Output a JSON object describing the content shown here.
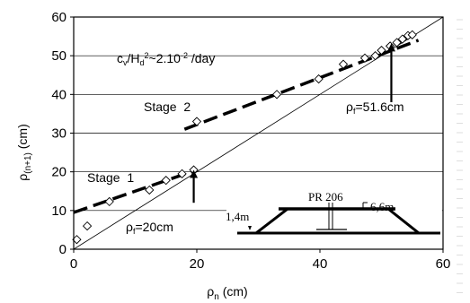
{
  "chart_data": {
    "type": "scatter",
    "xlabel": "ρn (cm)",
    "ylabel": "ρ(n+1) (cm)",
    "xlim": [
      0,
      60
    ],
    "ylim": [
      0,
      60
    ],
    "x_ticks": [
      "0",
      "20",
      "40",
      "60"
    ],
    "y_ticks": [
      "0",
      "10",
      "20",
      "30",
      "40",
      "50",
      "60"
    ],
    "grid": "horizontal",
    "legend": "none",
    "points": [
      {
        "x": 0.5,
        "y": 2.5
      },
      {
        "x": 2.2,
        "y": 6
      },
      {
        "x": 5.8,
        "y": 12.3
      },
      {
        "x": 12.3,
        "y": 15.3
      },
      {
        "x": 15,
        "y": 17.8
      },
      {
        "x": 17.6,
        "y": 19.5
      },
      {
        "x": 19.5,
        "y": 20.5
      },
      {
        "x": 20,
        "y": 33
      },
      {
        "x": 33,
        "y": 40
      },
      {
        "x": 39.8,
        "y": 44
      },
      {
        "x": 43.8,
        "y": 47.8
      },
      {
        "x": 47.3,
        "y": 49.4
      },
      {
        "x": 49,
        "y": 50
      },
      {
        "x": 50,
        "y": 51.4
      },
      {
        "x": 51.4,
        "y": 52.5
      },
      {
        "x": 52.5,
        "y": 53.4
      },
      {
        "x": 53.4,
        "y": 54.3
      },
      {
        "x": 54.3,
        "y": 55.2
      },
      {
        "x": 55,
        "y": 55.4
      }
    ],
    "fit_lines": [
      {
        "name": "Stage 1",
        "x": [
          0,
          20
        ],
        "y": [
          9.5,
          20.5
        ],
        "style": "dashed"
      },
      {
        "name": "Stage 2",
        "x": [
          18,
          56
        ],
        "y": [
          31,
          54
        ],
        "style": "dashed"
      }
    ],
    "reference_line": {
      "x": [
        0,
        60
      ],
      "y": [
        0,
        60
      ],
      "style": "thin"
    },
    "annotations": {
      "stage1": "Stage  1",
      "stage2": "Stage  2",
      "cv_label": "cv/Hd2~2.10-2 /day",
      "cv_c": "c",
      "cv_v": "v",
      "cv_slash_h": "/H",
      "cv_d": "d",
      "cv_2": "2",
      "cv_approx": "~2.10",
      "cv_exp": "-2",
      "cv_unit": " /day",
      "rho_f1": "ρf=20cm",
      "rho_f1_rho": "ρ",
      "rho_f1_sub": "f",
      "rho_f1_val": "=20cm",
      "rho_f2": "ρf=51.6cm",
      "rho_f2_rho": "ρ",
      "rho_f2_sub": "f",
      "rho_f2_val": "=51.6cm",
      "arrow1_at": {
        "x": 19.5,
        "y": 12
      },
      "arrow2_at": {
        "x": 51.6,
        "y": 38
      }
    },
    "xlabel_main": "ρ",
    "xlabel_sub": "n",
    "xlabel_unit": " (cm)",
    "ylabel_main": "ρ",
    "ylabel_sub": "(n+1)",
    "ylabel_unit": " (cm)"
  },
  "inset": {
    "title": "PR 206",
    "width_label": "6,6m",
    "height_label": "1,4m"
  },
  "colors": {
    "ink": "#000000",
    "grid": "#000000",
    "background": "#ffffff"
  }
}
